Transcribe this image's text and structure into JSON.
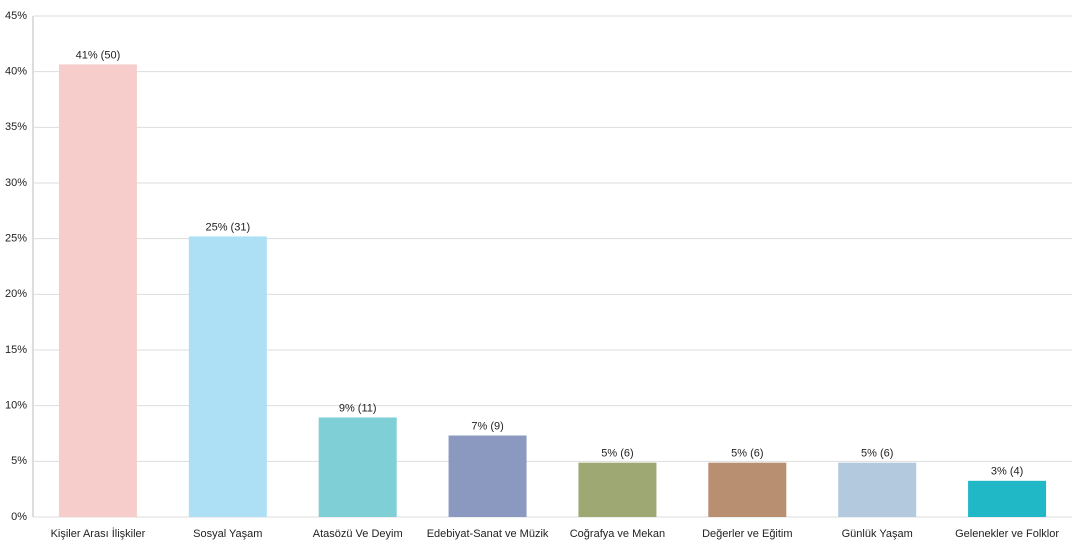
{
  "chart_data": {
    "type": "bar",
    "categories": [
      "Kişiler Arası İlişkiler",
      "Sosyal Yaşam",
      "Atasözü Ve Deyim",
      "Edebiyat-Sanat ve Müzik",
      "Coğrafya ve Mekan",
      "Değerler ve Eğitim",
      "Günlük Yaşam",
      "Gelenekler ve Folklor"
    ],
    "values": [
      40.65,
      25.2,
      8.94,
      7.32,
      4.88,
      4.88,
      4.88,
      3.25
    ],
    "value_labels": [
      "41% (50)",
      "25% (31)",
      "9% (11)",
      "7% (9)",
      "5% (6)",
      "5% (6)",
      "5% (6)",
      "3% (4)"
    ],
    "colors": [
      "#f7cdcb",
      "#addff5",
      "#7fd0d6",
      "#8b98c0",
      "#9ea872",
      "#b98f72",
      "#b3c9de",
      "#20b8c6"
    ],
    "ylim": [
      0,
      45
    ],
    "yticks": [
      {
        "value": 0,
        "label": "0%"
      },
      {
        "value": 5,
        "label": "5%"
      },
      {
        "value": 10,
        "label": "10%"
      },
      {
        "value": 15,
        "label": "15%"
      },
      {
        "value": 20,
        "label": "20%"
      },
      {
        "value": 25,
        "label": "25%"
      },
      {
        "value": 30,
        "label": "30%"
      },
      {
        "value": 35,
        "label": "35%"
      },
      {
        "value": 40,
        "label": "40%"
      },
      {
        "value": 45,
        "label": "45%"
      }
    ],
    "grid": true
  }
}
